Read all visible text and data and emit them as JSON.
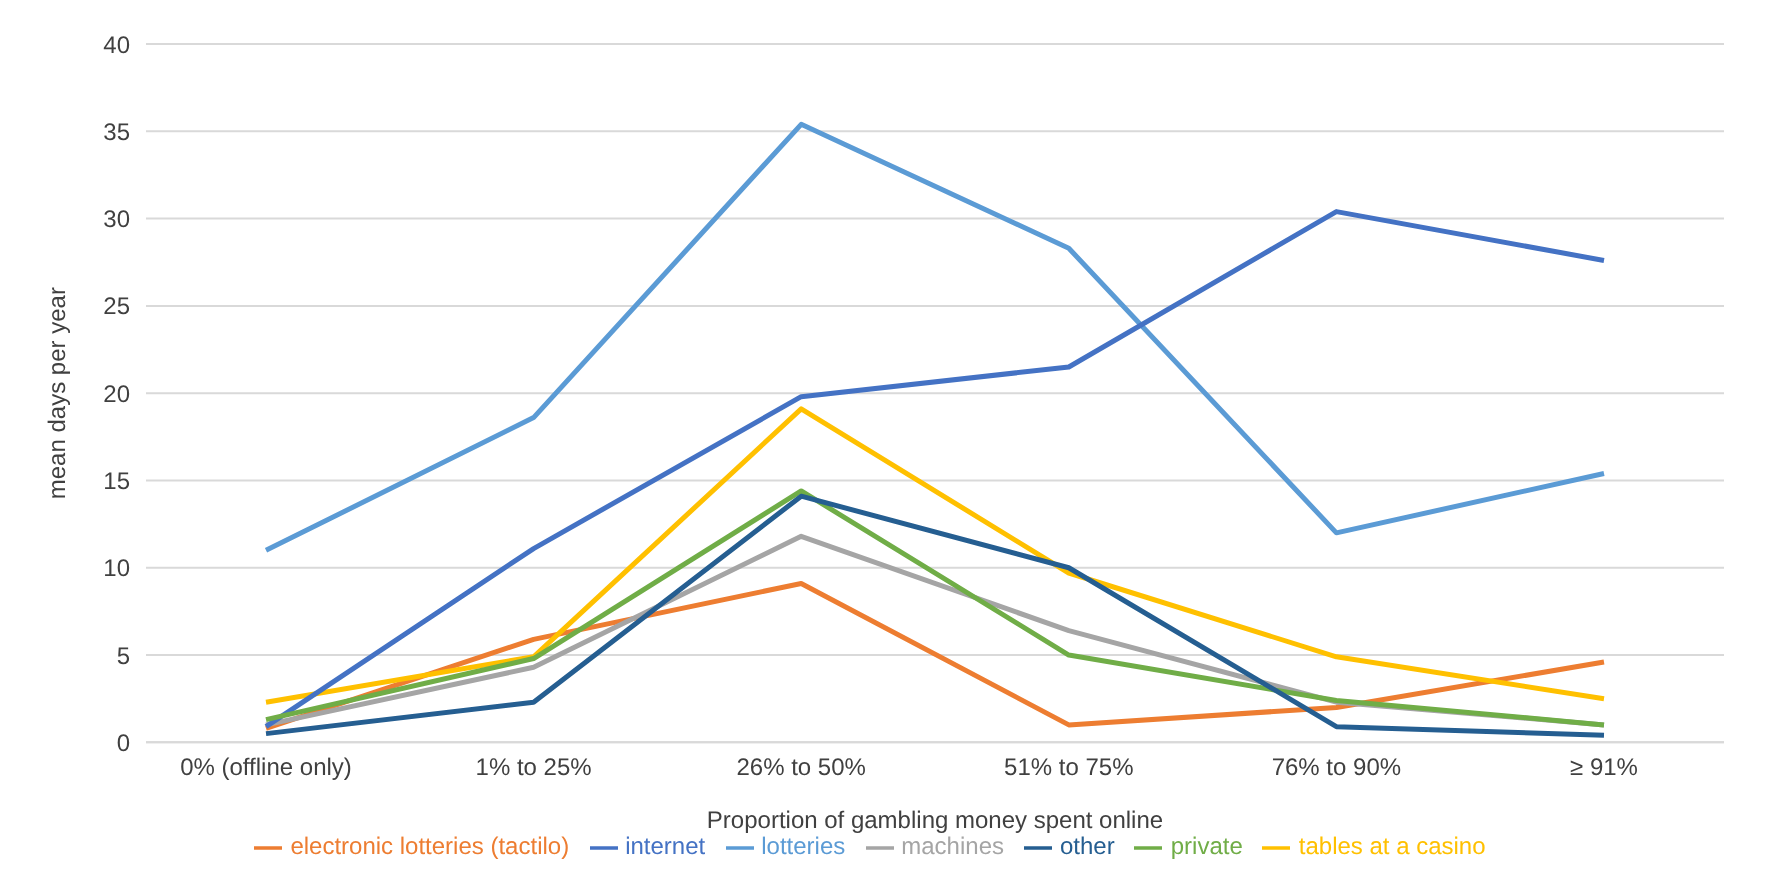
{
  "chart_data": {
    "type": "line",
    "xlabel": "Proportion of gambling money spent online",
    "ylabel": "mean days per year",
    "categories": [
      "0% (offline only)",
      "1% to 25%",
      "26% to 50%",
      "51% to 75%",
      "76% to 90%",
      "≥ 91%"
    ],
    "series": [
      {
        "name": "lotteries",
        "color": "#5b9bd5",
        "values": [
          11.0,
          18.6,
          35.4,
          28.3,
          12.0,
          15.4
        ]
      },
      {
        "name": "electronic lotteries (tactilo)",
        "color": "#ed7d31",
        "values": [
          0.8,
          5.9,
          9.1,
          1.0,
          2.0,
          4.6
        ]
      },
      {
        "name": "machines",
        "color": "#a5a5a5",
        "values": [
          1.0,
          4.3,
          11.8,
          6.4,
          2.3,
          1.0
        ]
      },
      {
        "name": "tables at a casino",
        "color": "#ffc000",
        "values": [
          2.3,
          4.9,
          19.1,
          9.7,
          4.9,
          2.5
        ]
      },
      {
        "name": "internet",
        "color": "#4472c4",
        "values": [
          0.9,
          11.1,
          19.8,
          21.5,
          30.4,
          27.6
        ]
      },
      {
        "name": "private",
        "color": "#70ad47",
        "values": [
          1.3,
          4.8,
          14.4,
          5.0,
          2.4,
          1.0
        ]
      },
      {
        "name": "other",
        "color": "#255e91",
        "values": [
          0.5,
          2.3,
          14.1,
          10.0,
          0.9,
          0.4
        ]
      }
    ],
    "ylim": [
      0,
      40
    ],
    "yticks": [
      0,
      5,
      10,
      15,
      20,
      25,
      30,
      35,
      40
    ],
    "grid": "y",
    "legend": "bottom",
    "marker": "none",
    "line_style": "solid"
  }
}
